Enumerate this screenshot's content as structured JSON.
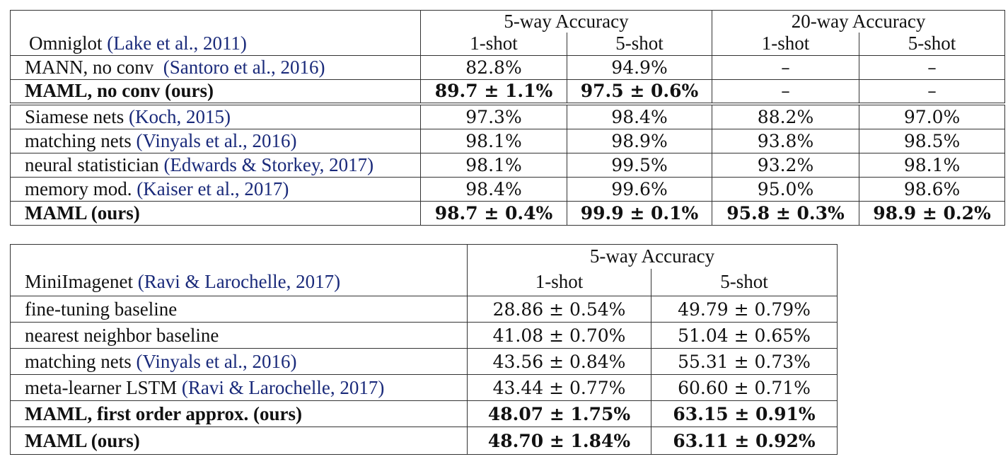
{
  "table1": {
    "dataset": "Omniglot",
    "dataset_cite": "(Lake et al., 2011)",
    "group1": "5-way Accuracy",
    "group2": "20-way Accuracy",
    "subcols": [
      "1-shot",
      "5-shot",
      "1-shot",
      "5-shot"
    ],
    "rows": [
      {
        "method": "MANN, no conv",
        "cite": "(Santoro et al., 2016)",
        "bold": false,
        "values": [
          "82.8%",
          "94.9%",
          "–",
          "–"
        ]
      },
      {
        "method": "MAML, no conv (ours)",
        "cite": "",
        "bold": true,
        "values": [
          "89.7 ± 1.1%",
          "97.5 ± 0.6%",
          "–",
          "–"
        ]
      },
      {
        "method": "Siamese nets",
        "cite": "(Koch, 2015)",
        "bold": false,
        "values": [
          "97.3%",
          "98.4%",
          "88.2%",
          "97.0%"
        ]
      },
      {
        "method": "matching nets",
        "cite": "(Vinyals et al., 2016)",
        "bold": false,
        "values": [
          "98.1%",
          "98.9%",
          "93.8%",
          "98.5%"
        ]
      },
      {
        "method": "neural statistician",
        "cite": "(Edwards & Storkey, 2017)",
        "bold": false,
        "values": [
          "98.1%",
          "99.5%",
          "93.2%",
          "98.1%"
        ]
      },
      {
        "method": "memory mod.",
        "cite": "(Kaiser et al., 2017)",
        "bold": false,
        "values": [
          "98.4%",
          "99.6%",
          "95.0%",
          "98.6%"
        ]
      },
      {
        "method": "MAML (ours)",
        "cite": "",
        "bold": true,
        "values": [
          "98.7 ± 0.4%",
          "99.9 ± 0.1%",
          "95.8 ± 0.3%",
          "98.9 ± 0.2%"
        ]
      }
    ]
  },
  "table2": {
    "dataset": "MiniImagenet",
    "dataset_cite": "(Ravi & Larochelle, 2017)",
    "group1": "5-way Accuracy",
    "subcols": [
      "1-shot",
      "5-shot"
    ],
    "rows": [
      {
        "method": "fine-tuning baseline",
        "cite": "",
        "bold": false,
        "values": [
          "28.86 ± 0.54%",
          "49.79 ± 0.79%"
        ]
      },
      {
        "method": "nearest neighbor baseline",
        "cite": "",
        "bold": false,
        "values": [
          "41.08 ± 0.70%",
          "51.04 ± 0.65%"
        ]
      },
      {
        "method": "matching nets",
        "cite": "(Vinyals et al., 2016)",
        "bold": false,
        "values": [
          "43.56 ± 0.84%",
          "55.31 ± 0.73%"
        ]
      },
      {
        "method": "meta-learner LSTM",
        "cite": "(Ravi & Larochelle, 2017)",
        "bold": false,
        "values": [
          "43.44 ± 0.77%",
          "60.60 ± 0.71%"
        ]
      },
      {
        "method": "MAML, first order approx. (ours)",
        "cite": "",
        "bold": true,
        "values": [
          "48.07 ± 1.75%",
          "63.15 ± 0.91%"
        ]
      },
      {
        "method": "MAML (ours)",
        "cite": "",
        "bold": true,
        "values": [
          "48.70 ± 1.84%",
          "63.11 ± 0.92%"
        ]
      }
    ]
  }
}
